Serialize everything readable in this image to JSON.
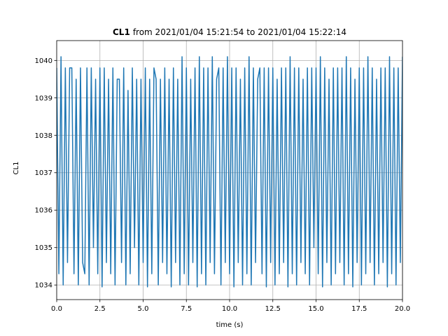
{
  "chart_data": {
    "type": "line",
    "title_name": "CL1",
    "title_range": "from 2021/01/04 15:21:54 to 2021/01/04 15:22:14",
    "xlabel": "time (s)",
    "ylabel": "CL1",
    "xlim": [
      0,
      20
    ],
    "ylim": [
      1033.61,
      1040.53
    ],
    "xticks": [
      {
        "value": 0,
        "label": "0.0"
      },
      {
        "value": 2.5,
        "label": "2.5"
      },
      {
        "value": 5,
        "label": "5.0"
      },
      {
        "value": 7.5,
        "label": "7.5"
      },
      {
        "value": 10,
        "label": "10.0"
      },
      {
        "value": 12.5,
        "label": "12.5"
      },
      {
        "value": 15,
        "label": "15.0"
      },
      {
        "value": 17.5,
        "label": "17.5"
      },
      {
        "value": 20,
        "label": "20.0"
      }
    ],
    "yticks": [
      1034,
      1035,
      1036,
      1037,
      1038,
      1039,
      1040
    ],
    "grid": true,
    "x": [
      0,
      0.125,
      0.25,
      0.375,
      0.5,
      0.625,
      0.75,
      0.875,
      1,
      1.125,
      1.25,
      1.375,
      1.5,
      1.625,
      1.75,
      1.875,
      2,
      2.125,
      2.25,
      2.375,
      2.5,
      2.625,
      2.75,
      2.875,
      3,
      3.125,
      3.25,
      3.375,
      3.5,
      3.625,
      3.75,
      3.875,
      4,
      4.125,
      4.25,
      4.375,
      4.5,
      4.625,
      4.75,
      4.875,
      5,
      5.125,
      5.25,
      5.375,
      5.5,
      5.625,
      5.75,
      5.875,
      6,
      6.125,
      6.25,
      6.375,
      6.5,
      6.625,
      6.75,
      6.875,
      7,
      7.125,
      7.25,
      7.375,
      7.5,
      7.625,
      7.75,
      7.875,
      8,
      8.125,
      8.25,
      8.375,
      8.5,
      8.625,
      8.75,
      8.875,
      9,
      9.125,
      9.25,
      9.375,
      9.5,
      9.625,
      9.75,
      9.875,
      10,
      10.125,
      10.25,
      10.375,
      10.5,
      10.625,
      10.75,
      10.875,
      11,
      11.125,
      11.25,
      11.375,
      11.5,
      11.625,
      11.75,
      11.875,
      12,
      12.125,
      12.25,
      12.375,
      12.5,
      12.625,
      12.75,
      12.875,
      13,
      13.125,
      13.25,
      13.375,
      13.5,
      13.625,
      13.75,
      13.875,
      14,
      14.125,
      14.25,
      14.375,
      14.5,
      14.625,
      14.75,
      14.875,
      15,
      15.125,
      15.25,
      15.375,
      15.5,
      15.625,
      15.75,
      15.875,
      16,
      16.125,
      16.25,
      16.375,
      16.5,
      16.625,
      16.75,
      16.875,
      17,
      17.125,
      17.25,
      17.375,
      17.5,
      17.625,
      17.75,
      17.875,
      18,
      18.125,
      18.25,
      18.375,
      18.5,
      18.625,
      18.75,
      18.875,
      19,
      19.125,
      19.25,
      19.375,
      19.5,
      19.625,
      19.75,
      19.875,
      20
    ],
    "series": [
      {
        "color": "#1f77b4",
        "values": [
          1039.8,
          1034.3,
          1040.1,
          1034.0,
          1039.8,
          1034.6,
          1039.8,
          1039.8,
          1034.3,
          1039.5,
          1034.0,
          1039.8,
          1034.6,
          1034.3,
          1039.8,
          1034.0,
          1039.8,
          1035.0,
          1039.5,
          1034.3,
          1039.8,
          1033.95,
          1039.8,
          1034.6,
          1039.5,
          1034.3,
          1039.8,
          1034.0,
          1039.5,
          1039.5,
          1034.6,
          1039.8,
          1034.0,
          1039.2,
          1034.3,
          1039.8,
          1035.0,
          1039.5,
          1034.0,
          1039.5,
          1034.6,
          1039.8,
          1033.95,
          1039.5,
          1034.3,
          1039.8,
          1039.5,
          1034.0,
          1039.5,
          1034.6,
          1039.8,
          1034.3,
          1039.5,
          1033.95,
          1039.8,
          1034.6,
          1039.5,
          1034.0,
          1040.1,
          1034.3,
          1039.8,
          1034.0,
          1039.5,
          1034.6,
          1039.8,
          1033.95,
          1040.1,
          1034.3,
          1039.8,
          1034.0,
          1039.8,
          1034.6,
          1040.1,
          1034.3,
          1039.5,
          1039.8,
          1034.0,
          1039.8,
          1034.6,
          1040.1,
          1034.3,
          1039.8,
          1033.95,
          1039.8,
          1034.6,
          1039.5,
          1034.0,
          1039.8,
          1034.3,
          1040.1,
          1034.0,
          1039.8,
          1034.6,
          1039.5,
          1039.8,
          1034.3,
          1039.8,
          1033.95,
          1039.8,
          1034.6,
          1039.8,
          1034.0,
          1039.5,
          1034.3,
          1039.8,
          1034.6,
          1039.8,
          1033.95,
          1040.1,
          1034.3,
          1039.8,
          1034.0,
          1039.8,
          1034.6,
          1039.5,
          1034.3,
          1039.8,
          1034.0,
          1039.8,
          1035.0,
          1039.8,
          1034.3,
          1040.1,
          1033.95,
          1039.8,
          1034.6,
          1039.5,
          1034.0,
          1039.8,
          1034.3,
          1039.8,
          1034.6,
          1039.8,
          1034.0,
          1040.1,
          1034.3,
          1039.8,
          1033.95,
          1039.5,
          1034.6,
          1039.8,
          1034.0,
          1039.8,
          1034.3,
          1040.1,
          1034.6,
          1039.8,
          1034.0,
          1039.5,
          1034.3,
          1039.8,
          1034.6,
          1039.8,
          1033.95,
          1040.1,
          1034.3,
          1039.8,
          1034.0,
          1039.8,
          1034.6,
          1040.1
        ]
      }
    ]
  }
}
